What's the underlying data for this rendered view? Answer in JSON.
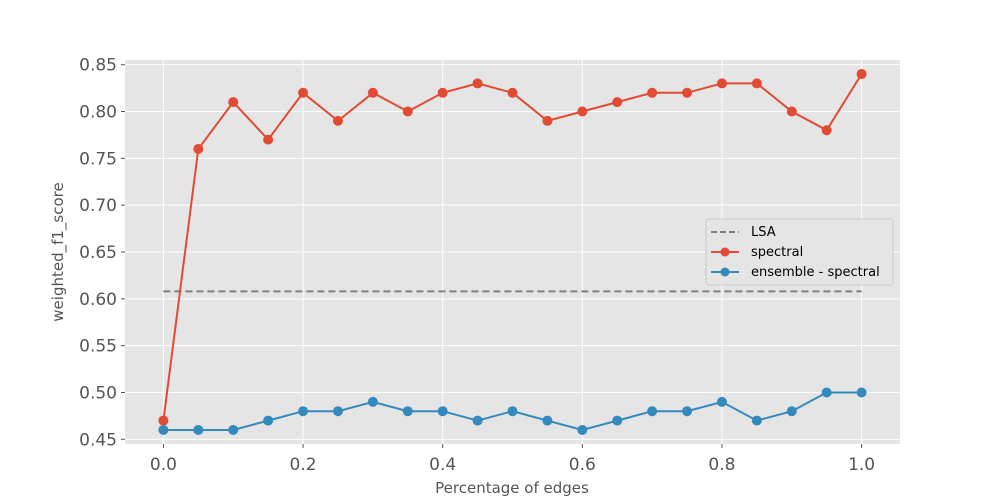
{
  "chart_data": {
    "type": "line",
    "xlabel": "Percentage of edges",
    "ylabel": "weighted_f1_score",
    "xlim": [
      -0.055,
      1.055
    ],
    "ylim": [
      0.445,
      0.855
    ],
    "xticks": [
      "0.0",
      "0.2",
      "0.4",
      "0.6",
      "0.8",
      "1.0"
    ],
    "yticks": [
      "0.45",
      "0.50",
      "0.55",
      "0.60",
      "0.65",
      "0.70",
      "0.75",
      "0.80",
      "0.85"
    ],
    "grid": true,
    "legend_position": "center-right",
    "reference_line": {
      "name": "LSA",
      "y": 0.608,
      "x": [
        0.0,
        1.0
      ],
      "color": "#808080",
      "style": "dashed"
    },
    "x": [
      0.0,
      0.05,
      0.1,
      0.15,
      0.2,
      0.25,
      0.3,
      0.35,
      0.4,
      0.45,
      0.5,
      0.55,
      0.6,
      0.65,
      0.7,
      0.75,
      0.8,
      0.85,
      0.9,
      0.95,
      1.0
    ],
    "series": [
      {
        "name": "spectral",
        "color": "#E24A33",
        "values": [
          0.47,
          0.76,
          0.81,
          0.77,
          0.82,
          0.79,
          0.82,
          0.8,
          0.82,
          0.83,
          0.82,
          0.79,
          0.8,
          0.81,
          0.82,
          0.82,
          0.83,
          0.83,
          0.8,
          0.78,
          0.84
        ]
      },
      {
        "name": "ensemble - spectral",
        "color": "#348ABD",
        "values": [
          0.46,
          0.46,
          0.46,
          0.47,
          0.48,
          0.48,
          0.49,
          0.48,
          0.48,
          0.47,
          0.48,
          0.47,
          0.46,
          0.47,
          0.48,
          0.48,
          0.49,
          0.47,
          0.48,
          0.5,
          0.5
        ]
      }
    ]
  }
}
